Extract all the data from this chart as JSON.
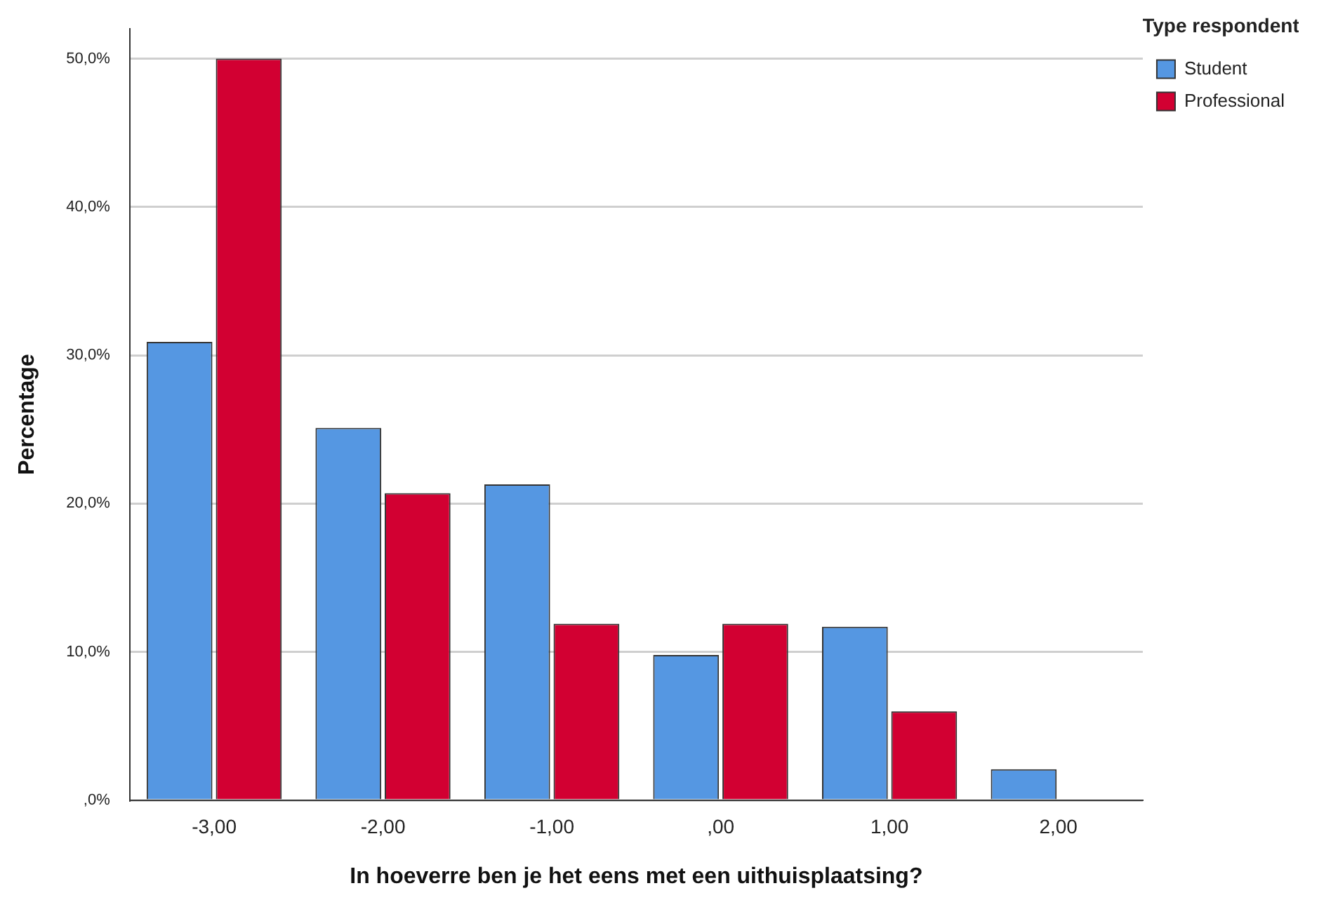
{
  "chart_data": {
    "type": "bar",
    "xlabel": "In hoeverre ben je het eens met een uithuisplaatsing?",
    "ylabel": "Percentage",
    "legend_title": "Type respondent",
    "categories": [
      "-3,00",
      "-2,00",
      "-1,00",
      ",00",
      "1,00",
      "2,00"
    ],
    "series": [
      {
        "name": "Student",
        "color": "#5597e2",
        "values": [
          30.9,
          25.1,
          21.3,
          9.8,
          11.7,
          2.1
        ]
      },
      {
        "name": "Professional",
        "color": "#d20032",
        "values": [
          50.0,
          20.7,
          11.9,
          11.9,
          6.0,
          0
        ]
      }
    ],
    "ylim": [
      0,
      52
    ],
    "yticks": [
      {
        "value": 0,
        "label": ",0%"
      },
      {
        "value": 10,
        "label": "10,0%"
      },
      {
        "value": 20,
        "label": "20,0%"
      },
      {
        "value": 30,
        "label": "30,0%"
      },
      {
        "value": 40,
        "label": "40,0%"
      },
      {
        "value": 50,
        "label": "50,0%"
      }
    ],
    "grid": "y",
    "legend": "top right"
  }
}
